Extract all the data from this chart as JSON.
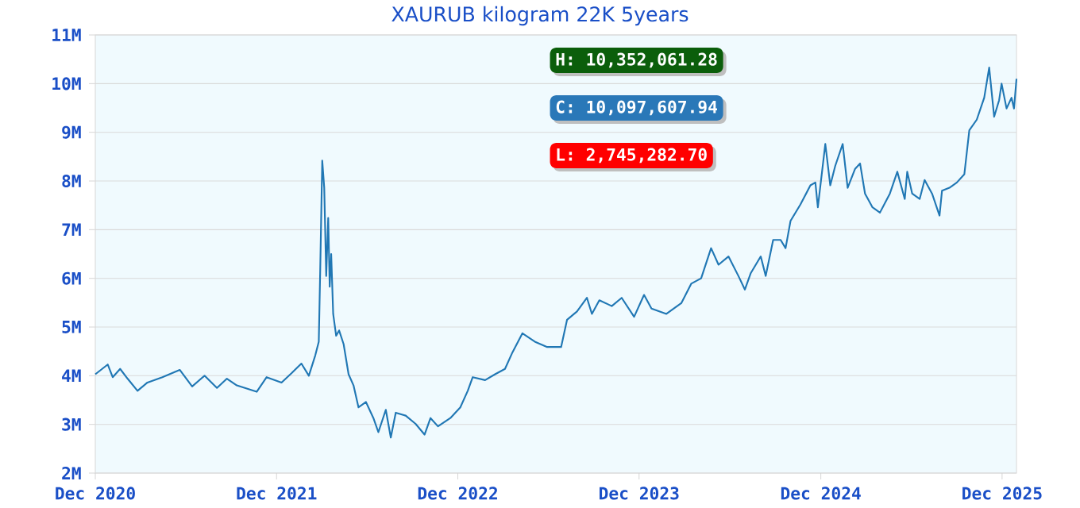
{
  "chart_data": {
    "type": "line",
    "title": "XAURUB kilogram 22K 5years",
    "color": "#2077b4",
    "grid": "y",
    "annotations": [
      "H: 10,352,061.28",
      "C: 10,097,607.94",
      "L: 2,745,282.70"
    ],
    "xlim": [
      "2020-12-01",
      "2025-12-30"
    ],
    "xticks": [
      {
        "value": "2020-12-01",
        "label": "Dec 2020"
      },
      {
        "value": "2021-12-01",
        "label": "Dec 2021"
      },
      {
        "value": "2022-12-01",
        "label": "Dec 2022"
      },
      {
        "value": "2023-12-01",
        "label": "Dec 2023"
      },
      {
        "value": "2024-12-01",
        "label": "Dec 2024"
      },
      {
        "value": "2025-12-01",
        "label": "Dec 2025"
      }
    ],
    "ylim": [
      2,
      11
    ],
    "yticks": [
      {
        "value": 2,
        "label": "2M"
      },
      {
        "value": 3,
        "label": "3M"
      },
      {
        "value": 4,
        "label": "4M"
      },
      {
        "value": 5,
        "label": "5M"
      },
      {
        "value": 6,
        "label": "6M"
      },
      {
        "value": 7,
        "label": "7M"
      },
      {
        "value": 8,
        "label": "8M"
      },
      {
        "value": 9,
        "label": "9M"
      },
      {
        "value": 10,
        "label": "10M"
      },
      {
        "value": 11,
        "label": "11M"
      }
    ],
    "x": [
      "2020-12-01",
      "2020-12-26",
      "2021-01-05",
      "2021-01-20",
      "2021-02-04",
      "2021-02-24",
      "2021-03-16",
      "2021-04-15",
      "2021-05-20",
      "2021-06-14",
      "2021-07-09",
      "2021-08-03",
      "2021-08-23",
      "2021-09-12",
      "2021-10-22",
      "2021-11-11",
      "2021-12-11",
      "2021-12-31",
      "2022-01-20",
      "2022-02-04",
      "2022-02-17",
      "2022-02-24",
      "2022-02-27",
      "2022-03-03",
      "2022-03-07",
      "2022-03-11",
      "2022-03-15",
      "2022-03-18",
      "2022-03-21",
      "2022-03-25",
      "2022-03-31",
      "2022-04-06",
      "2022-04-15",
      "2022-04-25",
      "2022-05-05",
      "2022-05-15",
      "2022-05-30",
      "2022-06-14",
      "2022-06-24",
      "2022-07-09",
      "2022-07-19",
      "2022-07-29",
      "2022-08-18",
      "2022-09-07",
      "2022-09-25",
      "2022-10-07",
      "2022-10-22",
      "2022-11-16",
      "2022-12-06",
      "2022-12-21",
      "2022-12-31",
      "2023-01-25",
      "2023-02-14",
      "2023-03-06",
      "2023-03-21",
      "2023-04-10",
      "2023-05-05",
      "2023-05-30",
      "2023-06-27",
      "2023-07-09",
      "2023-07-29",
      "2023-08-18",
      "2023-08-28",
      "2023-09-12",
      "2023-10-07",
      "2023-10-27",
      "2023-11-21",
      "2023-12-11",
      "2023-12-26",
      "2024-01-25",
      "2024-02-24",
      "2024-03-15",
      "2024-04-04",
      "2024-04-24",
      "2024-05-09",
      "2024-05-29",
      "2024-06-18",
      "2024-07-01",
      "2024-07-13",
      "2024-08-02",
      "2024-08-12",
      "2024-08-27",
      "2024-09-11",
      "2024-09-21",
      "2024-10-01",
      "2024-10-21",
      "2024-11-10",
      "2024-11-20",
      "2024-11-25",
      "2024-12-10",
      "2024-12-20",
      "2024-12-30",
      "2025-01-14",
      "2025-01-24",
      "2025-02-08",
      "2025-02-18",
      "2025-02-28",
      "2025-03-15",
      "2025-03-30",
      "2025-04-19",
      "2025-05-04",
      "2025-05-19",
      "2025-05-24",
      "2025-06-03",
      "2025-06-18",
      "2025-06-28",
      "2025-07-13",
      "2025-07-28",
      "2025-08-02",
      "2025-08-17",
      "2025-09-01",
      "2025-09-16",
      "2025-09-26",
      "2025-10-11",
      "2025-10-26",
      "2025-11-05",
      "2025-11-15",
      "2025-11-25",
      "2025-11-30",
      "2025-12-10",
      "2025-12-20",
      "2025-12-25",
      "2025-12-30"
    ],
    "values": [
      4.03,
      4.23,
      3.97,
      4.14,
      3.94,
      3.69,
      3.86,
      3.97,
      4.12,
      3.78,
      4.0,
      3.75,
      3.94,
      3.8,
      3.67,
      3.97,
      3.86,
      4.05,
      4.25,
      4.0,
      4.42,
      4.7,
      6.22,
      8.42,
      7.86,
      6.05,
      7.24,
      5.83,
      6.5,
      5.27,
      4.82,
      4.93,
      4.65,
      4.03,
      3.8,
      3.35,
      3.46,
      3.13,
      2.84,
      3.3,
      2.73,
      3.24,
      3.18,
      3.01,
      2.79,
      3.13,
      2.96,
      3.13,
      3.35,
      3.69,
      3.97,
      3.91,
      4.03,
      4.14,
      4.48,
      4.87,
      4.7,
      4.59,
      4.59,
      5.15,
      5.32,
      5.6,
      5.27,
      5.55,
      5.43,
      5.6,
      5.21,
      5.66,
      5.38,
      5.27,
      5.49,
      5.89,
      6.0,
      6.62,
      6.28,
      6.45,
      6.05,
      5.77,
      6.11,
      6.45,
      6.05,
      6.79,
      6.79,
      6.62,
      7.18,
      7.52,
      7.91,
      7.97,
      7.46,
      8.76,
      7.91,
      8.31,
      8.76,
      7.86,
      8.25,
      8.36,
      7.74,
      7.46,
      7.35,
      7.74,
      8.19,
      7.63,
      8.19,
      7.74,
      7.63,
      8.02,
      7.74,
      7.29,
      7.8,
      7.86,
      7.97,
      8.14,
      9.04,
      9.26,
      9.71,
      10.33,
      9.32,
      9.66,
      10.0,
      9.49,
      9.71,
      9.49,
      10.1
    ]
  }
}
